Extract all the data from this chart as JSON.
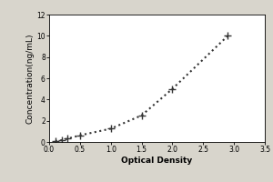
{
  "title": "",
  "xlabel": "Optical Density",
  "ylabel": "Concentration(ng/mL)",
  "x_data": [
    0.1,
    0.2,
    0.3,
    0.5,
    1.0,
    1.5,
    2.0,
    2.9
  ],
  "y_data": [
    0.078,
    0.156,
    0.312,
    0.625,
    1.25,
    2.5,
    5.0,
    10.0
  ],
  "xlim": [
    0,
    3.5
  ],
  "ylim": [
    0,
    12
  ],
  "xticks": [
    0,
    0.5,
    1.0,
    1.5,
    2.0,
    2.5,
    3.0,
    3.5
  ],
  "yticks": [
    0,
    2,
    4,
    6,
    8,
    10,
    12
  ],
  "line_color": "#333333",
  "marker": "+",
  "marker_size": 6,
  "marker_color": "#333333",
  "line_style": "dotted",
  "line_width": 1.5,
  "font_size_label": 6.5,
  "font_size_tick": 5.5,
  "plot_bg_color": "#ffffff",
  "fig_bg_color": "#d8d5cc",
  "border_color": "#000000"
}
